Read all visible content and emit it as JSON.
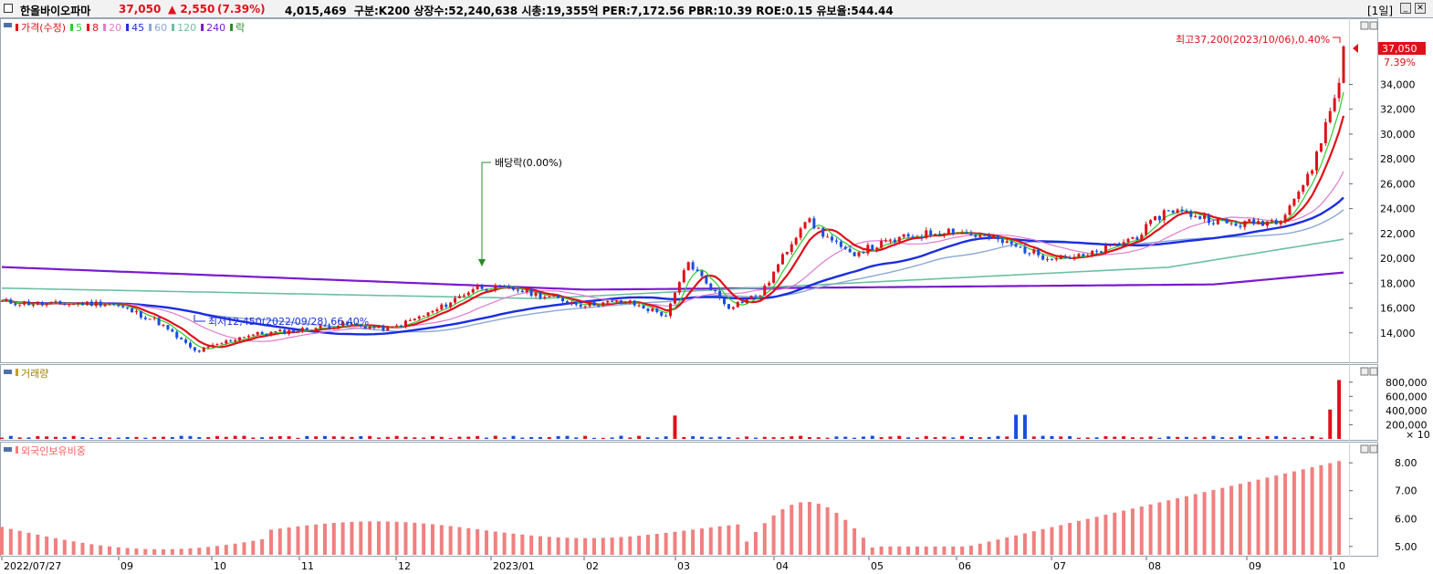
{
  "header": {
    "stock_name": "한올바이오파마",
    "price": "37,050",
    "change": "▲ 2,550",
    "change_pct": "(7.39%)",
    "info": "4,015,469  구분:K200 상장수:52,240,638 시총:19,355억 PER:7,172.56 PBR:10.39 ROE:0.15 유보율:544.44",
    "period": "[1일]",
    "min_icon": "minimize-icon",
    "close_icon": "close-icon"
  },
  "legend": {
    "price_label": "가격(수정)",
    "ma": [
      "5",
      "8",
      "20",
      "45",
      "60",
      "120",
      "240"
    ],
    "ex_label": "락",
    "colors": {
      "5": "#2ecc2e",
      "8": "#e0101a",
      "20": "#e07ad0",
      "45": "#1a2ee0",
      "60": "#8aa8d8",
      "120": "#6cc0a0",
      "240": "#7a1ad0"
    }
  },
  "annotations": {
    "high": "최고37,200(2023/10/06),0.40%",
    "low": "최저12,450(2022/09/28),66.40%",
    "dividend": "배당락(0.00%)",
    "current_price_tag": "37,050",
    "current_pct_tag": "7.39%",
    "vol_multiplier": "× 10"
  },
  "panels": {
    "volume_label": "거래량",
    "foreign_label": "외국인보유비중"
  },
  "axes": {
    "price_ticks": [
      "34,000",
      "32,000",
      "30,000",
      "28,000",
      "26,000",
      "24,000",
      "22,000",
      "20,000",
      "18,000",
      "16,000",
      "14,000"
    ],
    "volume_ticks": [
      "800,000",
      "600,000",
      "400,000",
      "200,000"
    ],
    "foreign_ticks": [
      "8.00",
      "7.00",
      "6.00",
      "5.00"
    ],
    "x_ticks": [
      "2022/07/27",
      "09",
      "10",
      "11",
      "12",
      "2023/01",
      "02",
      "03",
      "04",
      "05",
      "06",
      "07",
      "08",
      "09",
      "10"
    ]
  },
  "chart_data": {
    "type": "candlestick",
    "title": "한올바이오파마",
    "ylim": [
      12000,
      38000
    ],
    "series_close": [
      [
        "2022-07-27",
        16500
      ],
      [
        "2022-08-10",
        16300
      ],
      [
        "2022-08-31",
        16400
      ],
      [
        "2022-09-15",
        15000
      ],
      [
        "2022-09-28",
        12450
      ],
      [
        "2022-10-14",
        13800
      ],
      [
        "2022-10-31",
        14200
      ],
      [
        "2022-11-15",
        14700
      ],
      [
        "2022-11-30",
        14300
      ],
      [
        "2022-12-15",
        15800
      ],
      [
        "2022-12-28",
        17700
      ],
      [
        "2023-01-10",
        17500
      ],
      [
        "2023-01-31",
        16300
      ],
      [
        "2023-02-15",
        16500
      ],
      [
        "2023-02-28",
        15400
      ],
      [
        "2023-03-07",
        19700
      ],
      [
        "2023-03-20",
        16100
      ],
      [
        "2023-03-31",
        17200
      ],
      [
        "2023-04-14",
        23200
      ],
      [
        "2023-04-28",
        20300
      ],
      [
        "2023-05-15",
        21600
      ],
      [
        "2023-05-31",
        22300
      ],
      [
        "2023-06-15",
        21500
      ],
      [
        "2023-06-30",
        20200
      ],
      [
        "2023-07-14",
        20100
      ],
      [
        "2023-07-31",
        21800
      ],
      [
        "2023-08-10",
        24000
      ],
      [
        "2023-08-31",
        22700
      ],
      [
        "2023-09-15",
        23100
      ],
      [
        "2023-09-25",
        26700
      ],
      [
        "2023-10-05",
        34500
      ],
      [
        "2023-10-06",
        37050
      ]
    ],
    "foreign_ratio_range": [
      4.7,
      8.1
    ],
    "volume_peak": 830000
  }
}
